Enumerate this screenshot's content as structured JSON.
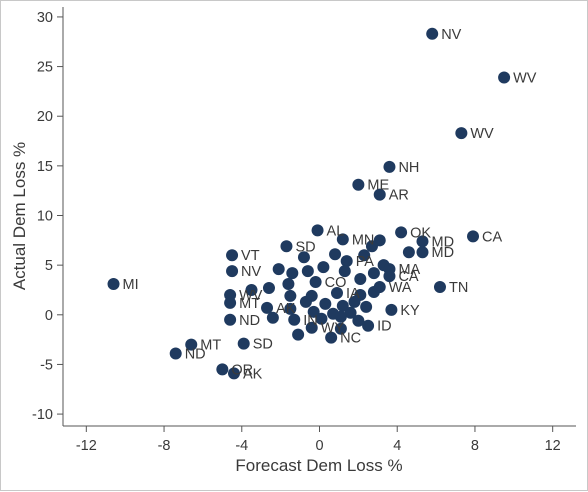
{
  "chart_data": {
    "type": "scatter",
    "title": "",
    "xlabel": "Forecast Dem Loss %",
    "ylabel": "Actual Dem Loss %",
    "xlim": [
      -13.2,
      13.2
    ],
    "ylim": [
      -11.2,
      31
    ],
    "xticks": [
      "-12",
      "-8",
      "-4",
      "0",
      "4",
      "8",
      "12"
    ],
    "xtick_values": [
      -12,
      -8,
      -4,
      0,
      4,
      8,
      12
    ],
    "yticks": [
      "-10",
      "-5",
      "0",
      "5",
      "10",
      "15",
      "20",
      "25",
      "30"
    ],
    "ytick_values": [
      -10,
      -5,
      0,
      5,
      10,
      15,
      20,
      25,
      30
    ],
    "grid": false,
    "marker_color": "#1f3a5f",
    "points": [
      {
        "x": 5.8,
        "y": 28.3,
        "label": "NV"
      },
      {
        "x": 9.5,
        "y": 23.9,
        "label": "WV"
      },
      {
        "x": 7.3,
        "y": 18.3,
        "label": "WV"
      },
      {
        "x": 3.6,
        "y": 14.9,
        "label": "NH"
      },
      {
        "x": 2.0,
        "y": 13.1,
        "label": "ME"
      },
      {
        "x": 3.1,
        "y": 12.1,
        "label": "AR"
      },
      {
        "x": 7.9,
        "y": 7.9,
        "label": "CA"
      },
      {
        "x": 4.2,
        "y": 8.3,
        "label": "OK"
      },
      {
        "x": -0.1,
        "y": 8.5,
        "label": "AL"
      },
      {
        "x": 1.2,
        "y": 7.6,
        "label": "MN"
      },
      {
        "x": 3.1,
        "y": 7.5,
        "label": ""
      },
      {
        "x": 5.3,
        "y": 7.4,
        "label": "MD"
      },
      {
        "x": 5.3,
        "y": 6.3,
        "label": "MD"
      },
      {
        "x": 4.6,
        "y": 6.3,
        "label": ""
      },
      {
        "x": -4.5,
        "y": 6.0,
        "label": "VT"
      },
      {
        "x": -1.7,
        "y": 6.9,
        "label": "SD"
      },
      {
        "x": 0.8,
        "y": 6.1,
        "label": ""
      },
      {
        "x": -0.8,
        "y": 5.8,
        "label": ""
      },
      {
        "x": 1.4,
        "y": 5.4,
        "label": "PA"
      },
      {
        "x": 2.7,
        "y": 6.9,
        "label": ""
      },
      {
        "x": 2.3,
        "y": 6.0,
        "label": ""
      },
      {
        "x": 3.3,
        "y": 5.0,
        "label": ""
      },
      {
        "x": 3.6,
        "y": 4.6,
        "label": "MA"
      },
      {
        "x": 3.6,
        "y": 3.9,
        "label": "CA"
      },
      {
        "x": -4.5,
        "y": 4.4,
        "label": "NV"
      },
      {
        "x": -2.1,
        "y": 4.6,
        "label": ""
      },
      {
        "x": -1.4,
        "y": 4.2,
        "label": ""
      },
      {
        "x": -0.6,
        "y": 4.4,
        "label": ""
      },
      {
        "x": 0.2,
        "y": 4.8,
        "label": ""
      },
      {
        "x": 1.3,
        "y": 4.4,
        "label": ""
      },
      {
        "x": 2.1,
        "y": 3.6,
        "label": ""
      },
      {
        "x": 2.8,
        "y": 4.2,
        "label": ""
      },
      {
        "x": -0.2,
        "y": 3.3,
        "label": "CO"
      },
      {
        "x": -1.6,
        "y": 3.1,
        "label": ""
      },
      {
        "x": -2.6,
        "y": 2.7,
        "label": ""
      },
      {
        "x": -3.5,
        "y": 2.5,
        "label": ""
      },
      {
        "x": -4.6,
        "y": 2.0,
        "label": "WV"
      },
      {
        "x": -4.6,
        "y": 1.2,
        "label": "MT"
      },
      {
        "x": 6.2,
        "y": 2.8,
        "label": "TN"
      },
      {
        "x": -10.6,
        "y": 3.1,
        "label": "MI"
      },
      {
        "x": -1.5,
        "y": 1.9,
        "label": ""
      },
      {
        "x": -0.4,
        "y": 1.9,
        "label": ""
      },
      {
        "x": 0.9,
        "y": 2.2,
        "label": "IA"
      },
      {
        "x": 2.1,
        "y": 2.0,
        "label": ""
      },
      {
        "x": 2.8,
        "y": 2.3,
        "label": ""
      },
      {
        "x": 3.1,
        "y": 2.8,
        "label": "WA"
      },
      {
        "x": -0.7,
        "y": 1.3,
        "label": ""
      },
      {
        "x": 0.3,
        "y": 1.1,
        "label": ""
      },
      {
        "x": 1.2,
        "y": 0.9,
        "label": ""
      },
      {
        "x": 1.8,
        "y": 1.3,
        "label": ""
      },
      {
        "x": -2.7,
        "y": 0.7,
        "label": "AK"
      },
      {
        "x": -1.5,
        "y": 0.6,
        "label": ""
      },
      {
        "x": -0.3,
        "y": 0.3,
        "label": ""
      },
      {
        "x": 0.7,
        "y": 0.1,
        "label": ""
      },
      {
        "x": 1.6,
        "y": 0.2,
        "label": ""
      },
      {
        "x": 2.4,
        "y": 0.8,
        "label": ""
      },
      {
        "x": 3.7,
        "y": 0.5,
        "label": "KY"
      },
      {
        "x": -4.6,
        "y": -0.5,
        "label": "ND"
      },
      {
        "x": -2.4,
        "y": -0.3,
        "label": ""
      },
      {
        "x": -1.3,
        "y": -0.5,
        "label": "IN"
      },
      {
        "x": 0.1,
        "y": -0.4,
        "label": ""
      },
      {
        "x": 1.1,
        "y": -0.2,
        "label": ""
      },
      {
        "x": 2.0,
        "y": -0.6,
        "label": ""
      },
      {
        "x": 2.5,
        "y": -1.1,
        "label": "ID"
      },
      {
        "x": 1.1,
        "y": -1.4,
        "label": ""
      },
      {
        "x": -0.4,
        "y": -1.3,
        "label": "WY"
      },
      {
        "x": -1.1,
        "y": -2.0,
        "label": ""
      },
      {
        "x": 0.6,
        "y": -2.3,
        "label": "NC"
      },
      {
        "x": -3.9,
        "y": -2.9,
        "label": "SD"
      },
      {
        "x": -6.6,
        "y": -3.0,
        "label": "MT"
      },
      {
        "x": -7.4,
        "y": -3.9,
        "label": "ND"
      },
      {
        "x": -5.0,
        "y": -5.5,
        "label": "OR"
      },
      {
        "x": -4.4,
        "y": -5.9,
        "label": "AK"
      }
    ]
  }
}
